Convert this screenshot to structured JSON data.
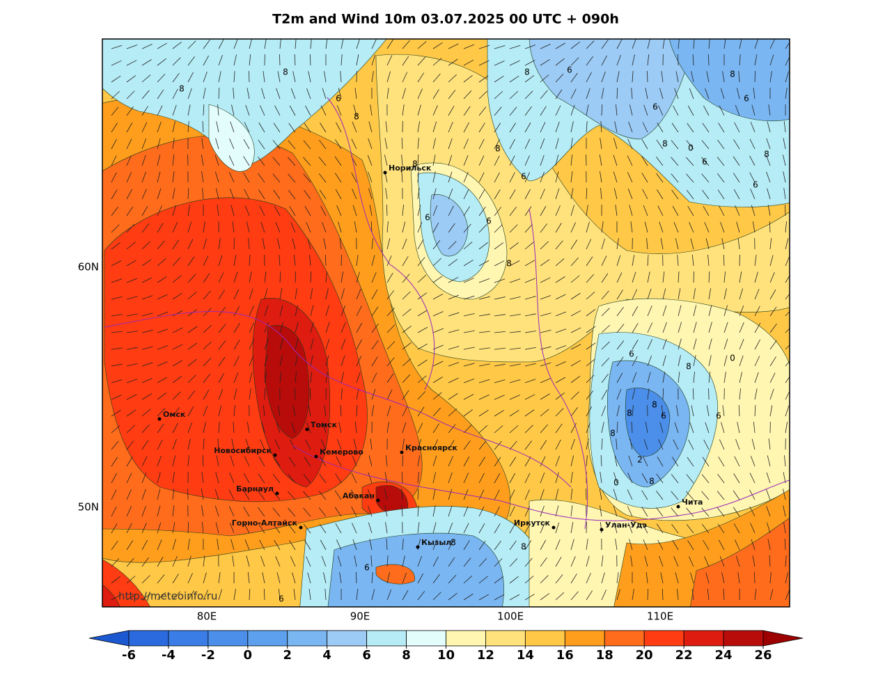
{
  "title": "T2m and Wind 10m 03.07.2025 00 UTC + 090h",
  "watermark": "http://meteoinfo.ru",
  "map": {
    "lon_labels": [
      "80E",
      "90E",
      "100E",
      "110E"
    ],
    "lat_labels": [
      "60N",
      "50N"
    ],
    "cities": [
      "Норильск",
      "Омск",
      "Томск",
      "Новосибирск",
      "Кемерово",
      "Красноярск",
      "Барнаул",
      "Абакан",
      "Горно-Алтайск",
      "Иркутск",
      "Улан-Удэ",
      "Чита",
      "Кызыл"
    ],
    "contour_labels": [
      8,
      8,
      6,
      8,
      8,
      6,
      6,
      8,
      6,
      6,
      8,
      6,
      8,
      0,
      6,
      8,
      6,
      6,
      8,
      6,
      8,
      0,
      6,
      8,
      8,
      6,
      2,
      0,
      8,
      8,
      6,
      8,
      8,
      6,
      8
    ]
  },
  "colorbar": {
    "ticks": [
      -6,
      -4,
      -2,
      0,
      2,
      4,
      6,
      8,
      10,
      12,
      14,
      16,
      18,
      20,
      22,
      24,
      26
    ],
    "colors": [
      "#1c58d0",
      "#2a6ade",
      "#3a7de6",
      "#4b8fea",
      "#5ca0ee",
      "#7ab6f2",
      "#9ccbf5",
      "#b6ecf6",
      "#e2fdfc",
      "#fff6b2",
      "#ffe27c",
      "#ffc846",
      "#ff9e1c",
      "#ff6c1c",
      "#ff3c12",
      "#de1c10",
      "#b80c0a",
      "#9c0000"
    ]
  }
}
